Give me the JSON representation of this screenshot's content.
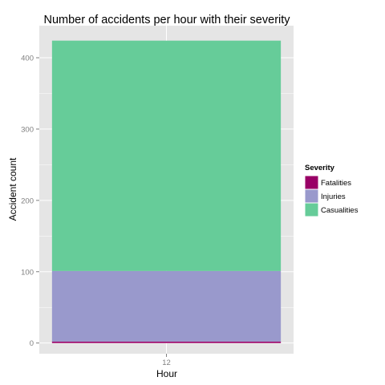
{
  "chart_data": {
    "type": "bar",
    "stacked": true,
    "title": "Number of accidents per hour with their severity",
    "xlabel": "Hour",
    "ylabel": "Accident count",
    "categories": [
      "12"
    ],
    "ylim": [
      -15,
      445
    ],
    "yticks": [
      0,
      100,
      200,
      300,
      400
    ],
    "grid": true,
    "legend_position": "right",
    "legend_title": "Severity",
    "series": [
      {
        "name": "Fatalities",
        "values": [
          2
        ],
        "color": "#990066"
      },
      {
        "name": "Injuries",
        "values": [
          99
        ],
        "color": "#9999CC"
      },
      {
        "name": "Casualities",
        "values": [
          323
        ],
        "color": "#66CC99"
      }
    ]
  },
  "colors": {
    "panel_background": "#E5E5E5",
    "gridline": "#FFFFFF",
    "tick_text": "#7F7F7F"
  }
}
